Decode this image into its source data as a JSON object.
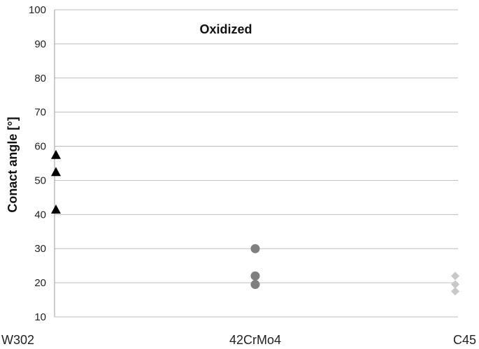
{
  "chart_data": {
    "type": "scatter",
    "title": "Oxidized",
    "xlabel": "",
    "ylabel": "Conact angle [°]",
    "ylim": [
      10,
      100
    ],
    "yticks": [
      10,
      20,
      30,
      40,
      50,
      60,
      70,
      80,
      90,
      100
    ],
    "categories": [
      "W302",
      "42CrMo4",
      "C45"
    ],
    "grid": true,
    "series": [
      {
        "category": "W302",
        "marker": "triangle",
        "color": "#000000",
        "values": [
          57.5,
          52.5,
          41.5
        ]
      },
      {
        "category": "42CrMo4",
        "marker": "circle",
        "color": "#7f7f7f",
        "values": [
          30,
          22,
          19.5
        ]
      },
      {
        "category": "C45",
        "marker": "diamond",
        "color": "#c8c8c8",
        "values": [
          22,
          19.5,
          17.5
        ]
      }
    ]
  }
}
